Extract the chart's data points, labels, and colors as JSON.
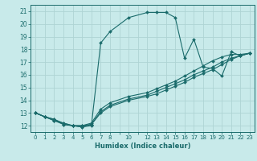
{
  "title": "",
  "xlabel": "Humidex (Indice chaleur)",
  "ylabel": "",
  "bg_color": "#c8eaea",
  "grid_color": "#aed4d4",
  "line_color": "#1a6b6b",
  "xlim": [
    -0.5,
    23.5
  ],
  "ylim": [
    11.5,
    21.5
  ],
  "xticks": [
    0,
    1,
    2,
    3,
    4,
    5,
    6,
    7,
    8,
    10,
    12,
    13,
    14,
    15,
    16,
    17,
    18,
    19,
    20,
    21,
    22,
    23
  ],
  "yticks": [
    12,
    13,
    14,
    15,
    16,
    17,
    18,
    19,
    20,
    21
  ],
  "lines": [
    {
      "x": [
        0,
        1,
        2,
        3,
        4,
        5,
        6,
        7,
        8,
        10,
        12,
        13,
        14,
        15,
        16,
        17,
        18,
        19,
        20,
        21,
        22,
        23
      ],
      "y": [
        13.0,
        12.7,
        12.5,
        12.1,
        12.0,
        11.9,
        12.0,
        18.5,
        19.4,
        20.5,
        20.9,
        20.9,
        20.9,
        20.5,
        17.3,
        18.8,
        16.6,
        16.5,
        15.9,
        17.8,
        17.5,
        17.7
      ]
    },
    {
      "x": [
        0,
        1,
        2,
        3,
        4,
        5,
        6,
        7,
        8,
        10,
        12,
        13,
        14,
        15,
        16,
        17,
        18,
        19,
        20,
        21,
        22,
        23
      ],
      "y": [
        13.0,
        12.7,
        12.4,
        12.2,
        12.0,
        11.9,
        12.1,
        13.0,
        13.5,
        14.0,
        14.3,
        14.5,
        14.8,
        15.1,
        15.4,
        15.8,
        16.1,
        16.4,
        16.8,
        17.2,
        17.5,
        17.7
      ]
    },
    {
      "x": [
        0,
        1,
        2,
        3,
        4,
        5,
        6,
        7,
        8,
        10,
        12,
        13,
        14,
        15,
        16,
        17,
        18,
        19,
        20,
        21,
        22,
        23
      ],
      "y": [
        13.0,
        12.7,
        12.4,
        12.1,
        12.0,
        12.0,
        12.1,
        13.1,
        13.6,
        14.1,
        14.4,
        14.7,
        15.0,
        15.3,
        15.6,
        16.0,
        16.3,
        16.6,
        17.0,
        17.3,
        17.5,
        17.7
      ]
    },
    {
      "x": [
        0,
        1,
        2,
        3,
        4,
        5,
        6,
        7,
        8,
        10,
        12,
        13,
        14,
        15,
        16,
        17,
        18,
        19,
        20,
        21,
        22,
        23
      ],
      "y": [
        13.0,
        12.7,
        12.5,
        12.2,
        12.0,
        12.0,
        12.2,
        13.3,
        13.8,
        14.3,
        14.6,
        14.9,
        15.2,
        15.5,
        15.9,
        16.3,
        16.7,
        17.1,
        17.4,
        17.6,
        17.6,
        17.7
      ]
    }
  ]
}
